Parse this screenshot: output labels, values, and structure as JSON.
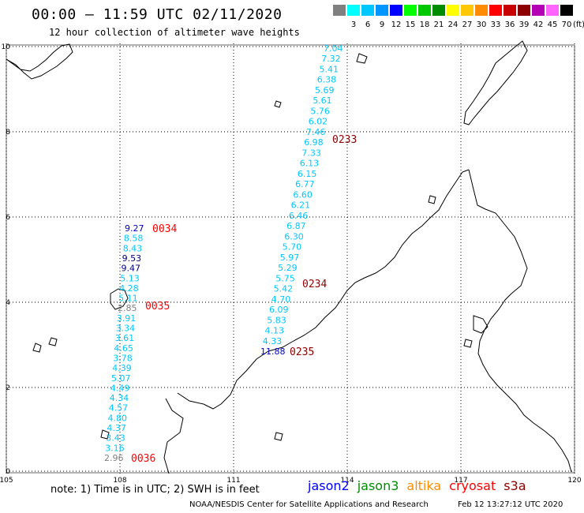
{
  "header": {
    "title": "00:00 – 11:59 UTC 02/11/2020",
    "subtitle": "12 hour collection of altimeter wave heights"
  },
  "legend": {
    "unit": "(ft)",
    "items": [
      {
        "label": "",
        "color": "#808080"
      },
      {
        "label": "3",
        "color": "#00ffff"
      },
      {
        "label": "6",
        "color": "#00c8ff"
      },
      {
        "label": "9",
        "color": "#0096ff"
      },
      {
        "label": "12",
        "color": "#0000ff"
      },
      {
        "label": "15",
        "color": "#00ff00"
      },
      {
        "label": "18",
        "color": "#00c800"
      },
      {
        "label": "21",
        "color": "#008c00"
      },
      {
        "label": "24",
        "color": "#ffff00"
      },
      {
        "label": "27",
        "color": "#ffc800"
      },
      {
        "label": "30",
        "color": "#ff8c00"
      },
      {
        "label": "33",
        "color": "#ff0000"
      },
      {
        "label": "36",
        "color": "#c80000"
      },
      {
        "label": "39",
        "color": "#8c0000"
      },
      {
        "label": "42",
        "color": "#b400b4"
      },
      {
        "label": "45",
        "color": "#ff64ff"
      },
      {
        "label": "70",
        "color": "#000000"
      }
    ]
  },
  "axes": {
    "lon_ticks": [
      "105",
      "108",
      "111",
      "114",
      "117",
      "120"
    ],
    "lat_ticks": [
      "0",
      "2",
      "4",
      "6",
      "8",
      "10"
    ]
  },
  "tracks": [
    {
      "id": "track-a",
      "heights": [
        {
          "v": "9.27",
          "c": "#0000cd"
        },
        {
          "v": "8.58",
          "c": "#00c8ff"
        },
        {
          "v": "8.43",
          "c": "#00c8ff"
        },
        {
          "v": "9.53",
          "c": "#000080"
        },
        {
          "v": "9.47",
          "c": "#000080"
        },
        {
          "v": "5.13",
          "c": "#00c8ff"
        },
        {
          "v": "4.28",
          "c": "#00c8ff"
        },
        {
          "v": "5.11",
          "c": "#00c8ff"
        },
        {
          "v": "2.85",
          "c": "#808080"
        },
        {
          "v": "3.91",
          "c": "#00c8ff"
        },
        {
          "v": "3.34",
          "c": "#00c8ff"
        },
        {
          "v": "3.61",
          "c": "#00c8ff"
        },
        {
          "v": "4.65",
          "c": "#00c8ff"
        },
        {
          "v": "3.78",
          "c": "#00c8ff"
        },
        {
          "v": "4.39",
          "c": "#00c8ff"
        },
        {
          "v": "5.07",
          "c": "#00c8ff"
        },
        {
          "v": "4.49",
          "c": "#00c8ff"
        },
        {
          "v": "4.34",
          "c": "#00c8ff"
        },
        {
          "v": "4.57",
          "c": "#00c8ff"
        },
        {
          "v": "4.80",
          "c": "#00c8ff"
        },
        {
          "v": "4.37",
          "c": "#00c8ff"
        },
        {
          "v": "3.43",
          "c": "#00c8ff"
        },
        {
          "v": "3.16",
          "c": "#00c8ff"
        },
        {
          "v": "2.96",
          "c": "#808080"
        }
      ],
      "times": [
        {
          "t": "0034",
          "c": "#ff0000"
        },
        {
          "t": "0035",
          "c": "#ff0000"
        },
        {
          "t": "0036",
          "c": "#ff0000"
        }
      ]
    },
    {
      "id": "track-b",
      "heights": [
        {
          "v": "7.04",
          "c": "#00c8ff"
        },
        {
          "v": "7.32",
          "c": "#00c8ff"
        },
        {
          "v": "5.41",
          "c": "#00c8ff"
        },
        {
          "v": "6.38",
          "c": "#00c8ff"
        },
        {
          "v": "5.69",
          "c": "#00c8ff"
        },
        {
          "v": "5.61",
          "c": "#00c8ff"
        },
        {
          "v": "5.76",
          "c": "#00c8ff"
        },
        {
          "v": "6.02",
          "c": "#00c8ff"
        },
        {
          "v": "7.46",
          "c": "#00c8ff"
        },
        {
          "v": "6.98",
          "c": "#00c8ff"
        },
        {
          "v": "7.33",
          "c": "#00c8ff"
        },
        {
          "v": "6.13",
          "c": "#00c8ff"
        },
        {
          "v": "6.15",
          "c": "#00c8ff"
        },
        {
          "v": "6.77",
          "c": "#00c8ff"
        },
        {
          "v": "6.60",
          "c": "#00c8ff"
        },
        {
          "v": "6.21",
          "c": "#00c8ff"
        },
        {
          "v": "6.46",
          "c": "#00c8ff"
        },
        {
          "v": "6.87",
          "c": "#00c8ff"
        },
        {
          "v": "6.30",
          "c": "#00c8ff"
        },
        {
          "v": "5.70",
          "c": "#00c8ff"
        },
        {
          "v": "5.97",
          "c": "#00c8ff"
        },
        {
          "v": "5.29",
          "c": "#00c8ff"
        },
        {
          "v": "5.75",
          "c": "#00c8ff"
        },
        {
          "v": "5.42",
          "c": "#00c8ff"
        },
        {
          "v": "4.70",
          "c": "#00c8ff"
        },
        {
          "v": "6.09",
          "c": "#00c8ff"
        },
        {
          "v": "5.83",
          "c": "#00c8ff"
        },
        {
          "v": "4.13",
          "c": "#00c8ff"
        },
        {
          "v": "4.33",
          "c": "#00c8ff"
        },
        {
          "v": "11.88",
          "c": "#0000cd"
        }
      ],
      "times": [
        {
          "t": "0233",
          "c": "#8b0000"
        },
        {
          "t": "0234",
          "c": "#8b0000"
        },
        {
          "t": "0235",
          "c": "#8b0000"
        }
      ]
    }
  ],
  "footer": {
    "note": "note: 1) Time is in UTC; 2) SWH is in feet",
    "satellites": [
      {
        "name": "jason2",
        "color": "#0000ff"
      },
      {
        "name": "jason3",
        "color": "#008c00"
      },
      {
        "name": "altika",
        "color": "#ff8c00"
      },
      {
        "name": "cryosat",
        "color": "#ff0000"
      },
      {
        "name": "s3a",
        "color": "#8b0000"
      }
    ],
    "credit": "NOAA/NESDIS Center for Satellite Applications and Research",
    "timestamp": "Feb 12 13:27:12 UTC 2020"
  }
}
